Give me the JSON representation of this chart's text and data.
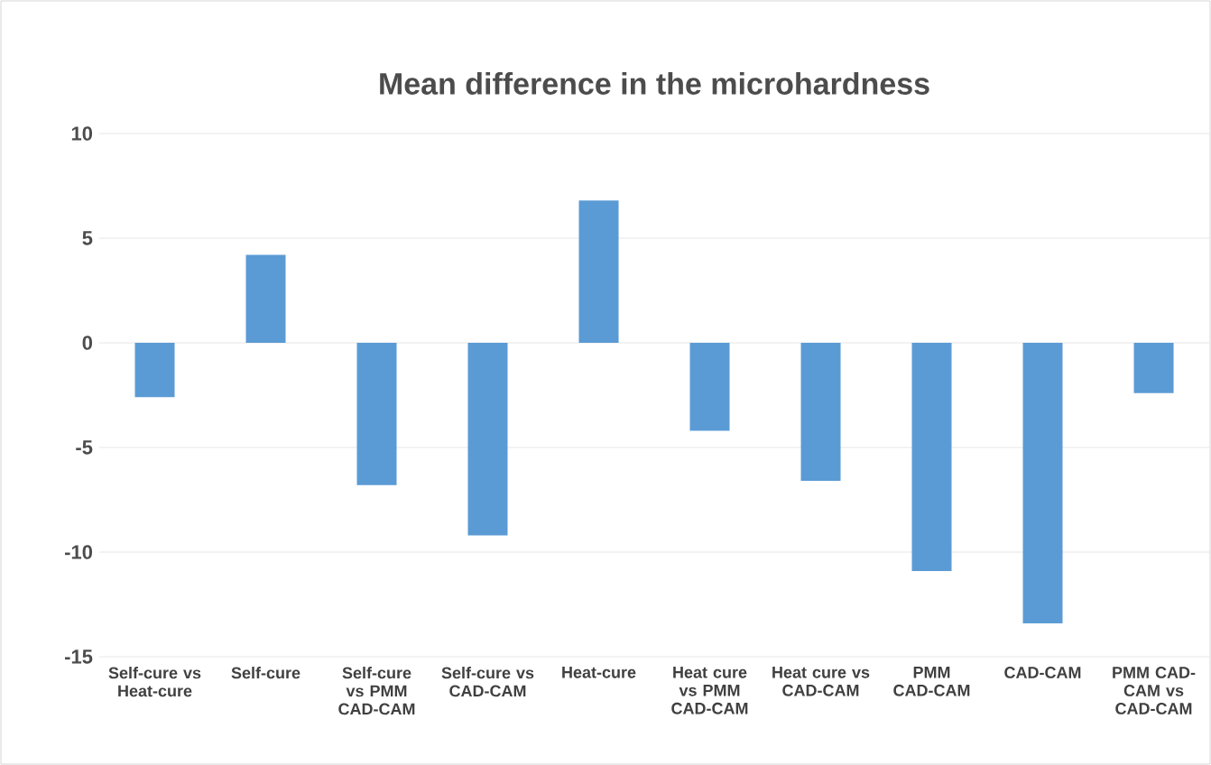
{
  "chart_data": {
    "type": "bar",
    "title": "Mean difference in the microhardness",
    "categories": [
      "Self-cure vs Heat-cure",
      "Self-cure",
      "Self-cure vs PMM CAD-CAM",
      "Self-cure vs CAD-CAM",
      "Heat-cure",
      "Heat cure vs PMM CAD-CAM",
      "Heat cure vs CAD-CAM",
      "PMM CAD-CAM",
      "CAD-CAM",
      "PMM CAD-CAM vs CAD-CAM"
    ],
    "values": [
      -2.6,
      4.2,
      -6.8,
      -9.2,
      6.8,
      -4.2,
      -6.6,
      -10.9,
      -13.4,
      -2.4
    ],
    "color": "#5b9bd5",
    "ylim": [
      -15,
      10
    ],
    "yticks": [
      -15,
      -10,
      -5,
      0,
      5,
      10
    ],
    "grid": "y"
  }
}
